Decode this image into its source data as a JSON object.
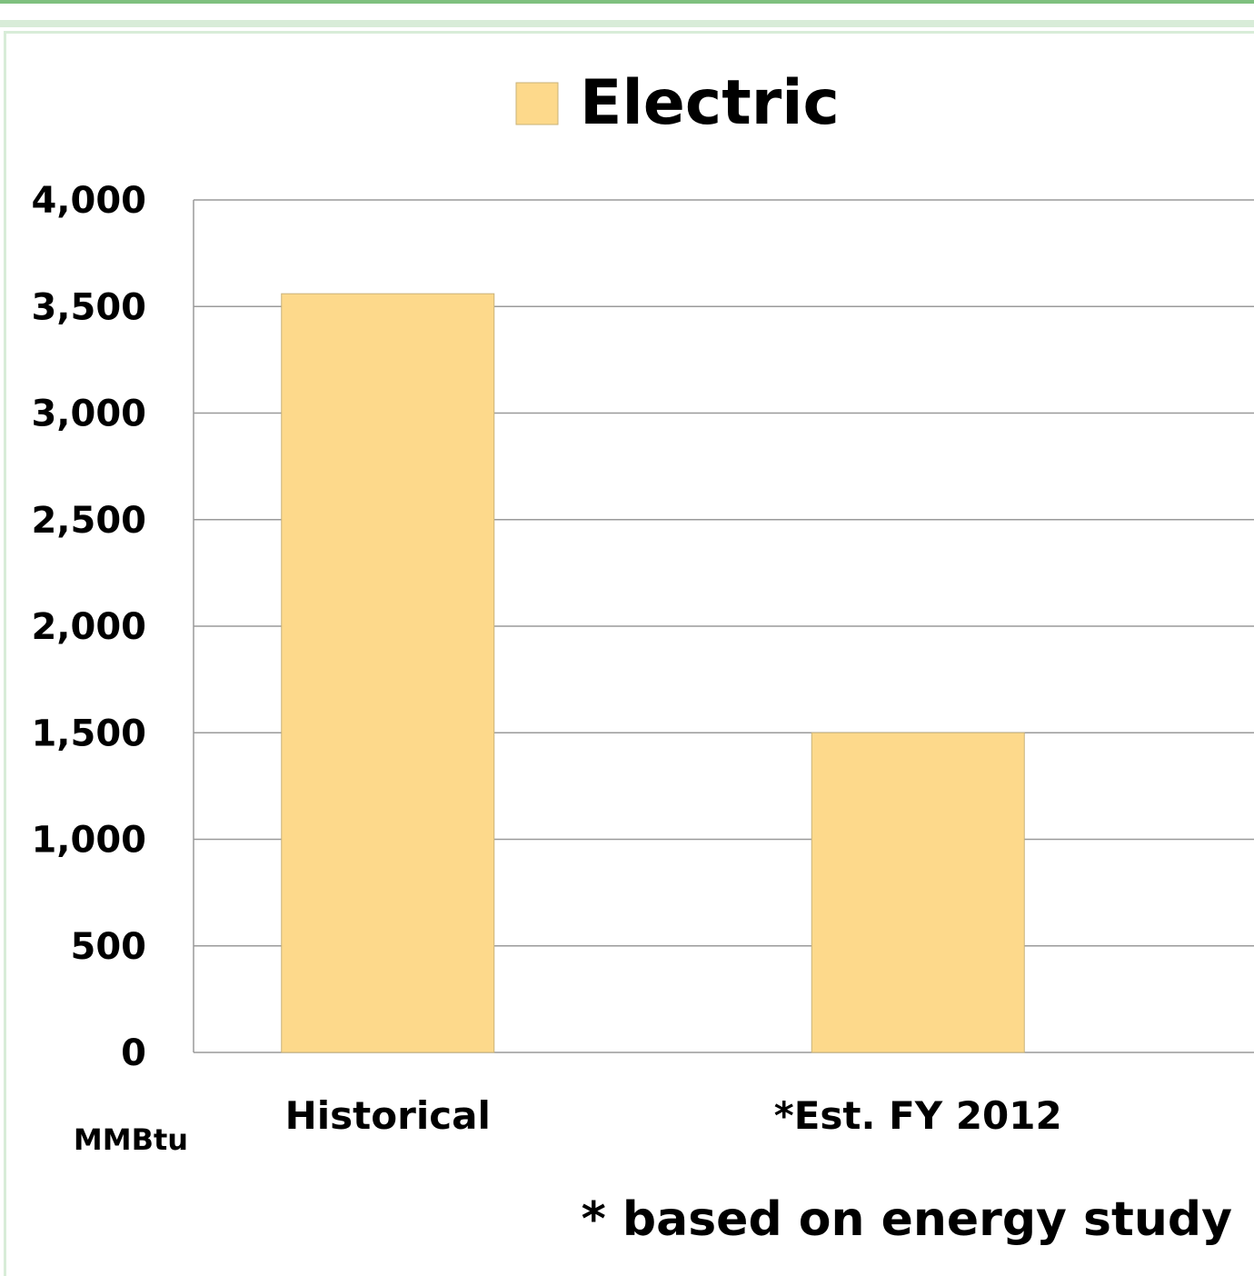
{
  "chart_data": {
    "type": "bar",
    "categories": [
      "Historical",
      "*Est. FY 2012"
    ],
    "series": [
      {
        "name": "Electric",
        "values": [
          3560,
          1500
        ]
      }
    ],
    "ylim": [
      0,
      4000
    ],
    "yticks": [
      0,
      500,
      1000,
      1500,
      2000,
      2500,
      3000,
      3500,
      4000
    ],
    "ytick_labels": [
      "0",
      "500",
      "1,000",
      "1,500",
      "2,000",
      "2,500",
      "3,000",
      "3,500",
      "4,000"
    ],
    "ylabel": "MMBtu",
    "legend_position": "top-center",
    "grid": true,
    "annotation": "* based on energy study",
    "colors": {
      "bar_fill": "#fdd98b",
      "bar_stroke": "#c8b27a",
      "grid": "#9a9a9a",
      "frame_accent": "#7fc07f"
    }
  }
}
